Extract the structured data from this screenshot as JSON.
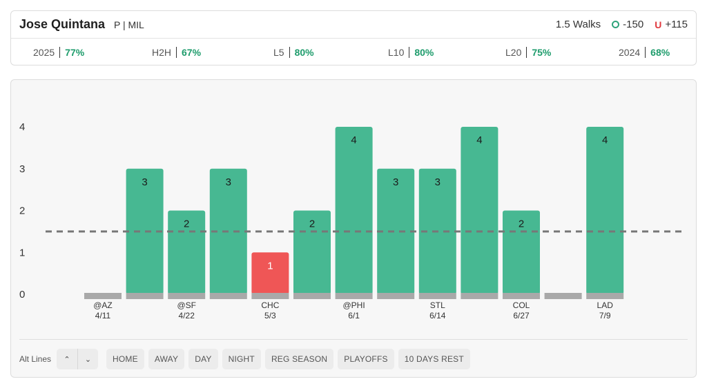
{
  "header": {
    "player_name": "Jose Quintana",
    "player_meta": "P | MIL",
    "prop": "1.5 Walks",
    "over_odds": "-150",
    "under_label": "U",
    "under_odds": "+115"
  },
  "stats": [
    {
      "label": "2025",
      "value": "77%"
    },
    {
      "label": "H2H",
      "value": "67%"
    },
    {
      "label": "L5",
      "value": "80%"
    },
    {
      "label": "L10",
      "value": "80%"
    },
    {
      "label": "L20",
      "value": "75%"
    },
    {
      "label": "2024",
      "value": "68%"
    }
  ],
  "colors": {
    "over": "#47b892",
    "under": "#ef5656",
    "baseline": "#a9a9a9",
    "line": "#777777",
    "accent": "#1e9c6c"
  },
  "chart_data": {
    "type": "bar",
    "title": "",
    "xlabel": "",
    "ylabel": "",
    "ylim": [
      0,
      4
    ],
    "yticks": [
      0,
      1,
      2,
      3,
      4
    ],
    "prop_line": 1.5,
    "games": [
      {
        "opponent": "@AZ",
        "date": "4/11",
        "value": 0
      },
      {
        "opponent": "",
        "date": "",
        "value": 3
      },
      {
        "opponent": "@SF",
        "date": "4/22",
        "value": 2
      },
      {
        "opponent": "",
        "date": "",
        "value": 3
      },
      {
        "opponent": "CHC",
        "date": "5/3",
        "value": 1
      },
      {
        "opponent": "",
        "date": "",
        "value": 2
      },
      {
        "opponent": "@PHI",
        "date": "6/1",
        "value": 4
      },
      {
        "opponent": "",
        "date": "",
        "value": 3
      },
      {
        "opponent": "STL",
        "date": "6/14",
        "value": 3
      },
      {
        "opponent": "",
        "date": "",
        "value": 4
      },
      {
        "opponent": "COL",
        "date": "6/27",
        "value": 2
      },
      {
        "opponent": "",
        "date": "",
        "value": 0
      },
      {
        "opponent": "LAD",
        "date": "7/9",
        "value": 4
      }
    ]
  },
  "controls": {
    "alt_lines_label": "Alt Lines",
    "up_icon": "chevron-up-icon",
    "down_icon": "chevron-down-icon",
    "filters": [
      "HOME",
      "AWAY",
      "DAY",
      "NIGHT",
      "REG SEASON",
      "PLAYOFFS",
      "10 DAYS REST"
    ]
  }
}
